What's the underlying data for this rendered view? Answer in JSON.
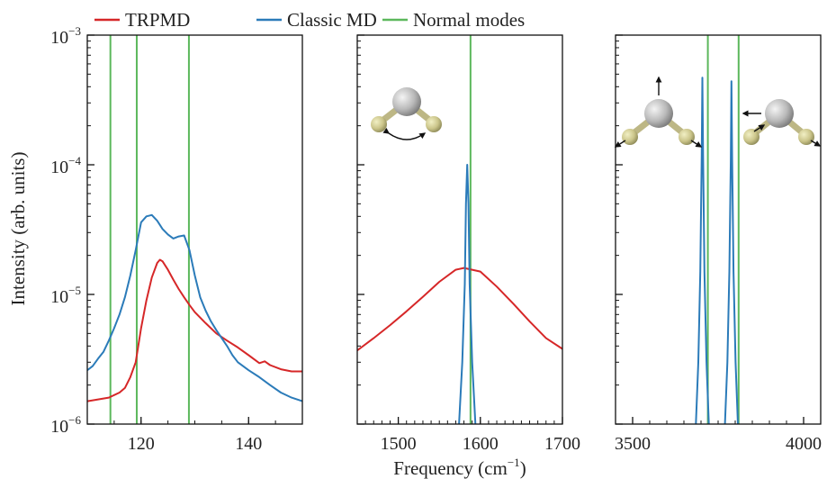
{
  "legend": [
    {
      "label": "TRPMD",
      "color": "#d62728"
    },
    {
      "label": "Classic MD",
      "color": "#2b7bb9"
    },
    {
      "label": "Normal modes",
      "color": "#5cb85c"
    }
  ],
  "axes": {
    "ylabel": "Intensity (arb. units)",
    "xlabel_main": "Frequency (cm",
    "xlabel_sup": "−1",
    "xlabel_close": ")",
    "ytick_base": "10",
    "yticks": [
      {
        "exp": "−3",
        "value": 0.001
      },
      {
        "exp": "−4",
        "value": 0.0001
      },
      {
        "exp": "−5",
        "value": 1e-05
      },
      {
        "exp": "−6",
        "value": 1e-06
      }
    ]
  },
  "chart_data": [
    {
      "type": "line",
      "panel": "left",
      "xlim": [
        110,
        150
      ],
      "ylim": [
        1e-06,
        0.001
      ],
      "yscale": "log",
      "xticks": [
        120,
        140
      ],
      "normal_modes": [
        114.3,
        119.2,
        128.9
      ],
      "series": [
        {
          "name": "TRPMD",
          "color": "#d62728",
          "x": [
            110,
            112,
            114,
            116,
            117,
            118,
            119,
            120,
            121,
            122,
            123,
            123.5,
            124,
            125,
            126,
            127,
            128,
            129,
            130,
            132,
            134,
            136,
            138,
            140,
            142,
            143,
            144,
            146,
            148,
            150
          ],
          "y": [
            1.5e-06,
            1.55e-06,
            1.6e-06,
            1.75e-06,
            1.9e-06,
            2.3e-06,
            3e-06,
            5.5e-06,
            9e-06,
            1.35e-05,
            1.75e-05,
            1.85e-05,
            1.8e-05,
            1.55e-05,
            1.3e-05,
            1.1e-05,
            9.5e-06,
            8.3e-06,
            7.3e-06,
            6e-06,
            5e-06,
            4.4e-06,
            3.9e-06,
            3.4e-06,
            2.95e-06,
            3.05e-06,
            2.85e-06,
            2.65e-06,
            2.55e-06,
            2.55e-06
          ]
        },
        {
          "name": "Classic MD",
          "color": "#2b7bb9",
          "x": [
            110,
            111,
            112,
            113,
            114,
            115,
            116,
            117,
            118,
            119,
            120,
            121,
            122,
            123,
            124,
            125,
            126,
            127,
            128,
            129,
            130,
            131,
            132,
            133,
            134,
            135,
            136,
            137,
            138,
            140,
            142,
            144,
            146,
            148,
            150
          ],
          "y": [
            2.6e-06,
            2.8e-06,
            3.2e-06,
            3.6e-06,
            4.4e-06,
            5.5e-06,
            7e-06,
            9.5e-06,
            1.4e-05,
            2.2e-05,
            3.6e-05,
            4e-05,
            4.1e-05,
            3.7e-05,
            3.2e-05,
            2.9e-05,
            2.7e-05,
            2.8e-05,
            2.85e-05,
            2.2e-05,
            1.4e-05,
            9.5e-06,
            7.5e-06,
            6.2e-06,
            5.3e-06,
            4.6e-06,
            4e-06,
            3.4e-06,
            3e-06,
            2.6e-06,
            2.3e-06,
            2e-06,
            1.75e-06,
            1.6e-06,
            1.5e-06
          ]
        }
      ]
    },
    {
      "type": "line",
      "panel": "middle",
      "xlim": [
        1450,
        1700
      ],
      "ylim": [
        1e-06,
        0.001
      ],
      "yscale": "log",
      "xticks": [
        1500,
        1600,
        1700
      ],
      "normal_modes": [
        1588
      ],
      "series": [
        {
          "name": "TRPMD",
          "color": "#d62728",
          "x": [
            1450,
            1470,
            1490,
            1510,
            1530,
            1550,
            1570,
            1580,
            1590,
            1600,
            1620,
            1640,
            1660,
            1680,
            1700
          ],
          "y": [
            3.7e-06,
            4.6e-06,
            5.8e-06,
            7.4e-06,
            9.6e-06,
            1.25e-05,
            1.55e-05,
            1.6e-05,
            1.55e-05,
            1.5e-05,
            1.15e-05,
            8.5e-06,
            6.2e-06,
            4.6e-06,
            3.8e-06
          ]
        },
        {
          "name": "Classic MD",
          "color": "#2b7bb9",
          "x": [
            1574,
            1578,
            1581,
            1582.5,
            1584,
            1585.5,
            1587,
            1590,
            1594
          ],
          "y": [
            1e-06,
            3e-06,
            1.2e-05,
            5e-05,
            0.0001,
            5e-05,
            1.2e-05,
            3e-06,
            1e-06
          ]
        }
      ]
    },
    {
      "type": "line",
      "panel": "right",
      "xlim": [
        3450,
        4050
      ],
      "ylim": [
        1e-06,
        0.001
      ],
      "yscale": "log",
      "xticks": [
        3500,
        4000
      ],
      "normal_modes": [
        3720,
        3810
      ],
      "series": [
        {
          "name": "Classic MD",
          "color": "#2b7bb9",
          "x": [
            3685,
            3692,
            3698,
            3702,
            3704,
            3706,
            3710,
            3716,
            3723
          ],
          "y": [
            1e-06,
            3e-06,
            1.5e-05,
            0.00012,
            0.00047,
            0.00012,
            1.5e-05,
            3e-06,
            1e-06
          ]
        },
        {
          "name": "Classic MD",
          "color": "#2b7bb9",
          "x": [
            3770,
            3777,
            3783,
            3787,
            3789,
            3791,
            3795,
            3801,
            3808
          ],
          "y": [
            1e-06,
            3e-06,
            1.5e-05,
            0.00011,
            0.00044,
            0.00011,
            1.5e-05,
            3e-06,
            1e-06
          ]
        }
      ]
    }
  ]
}
